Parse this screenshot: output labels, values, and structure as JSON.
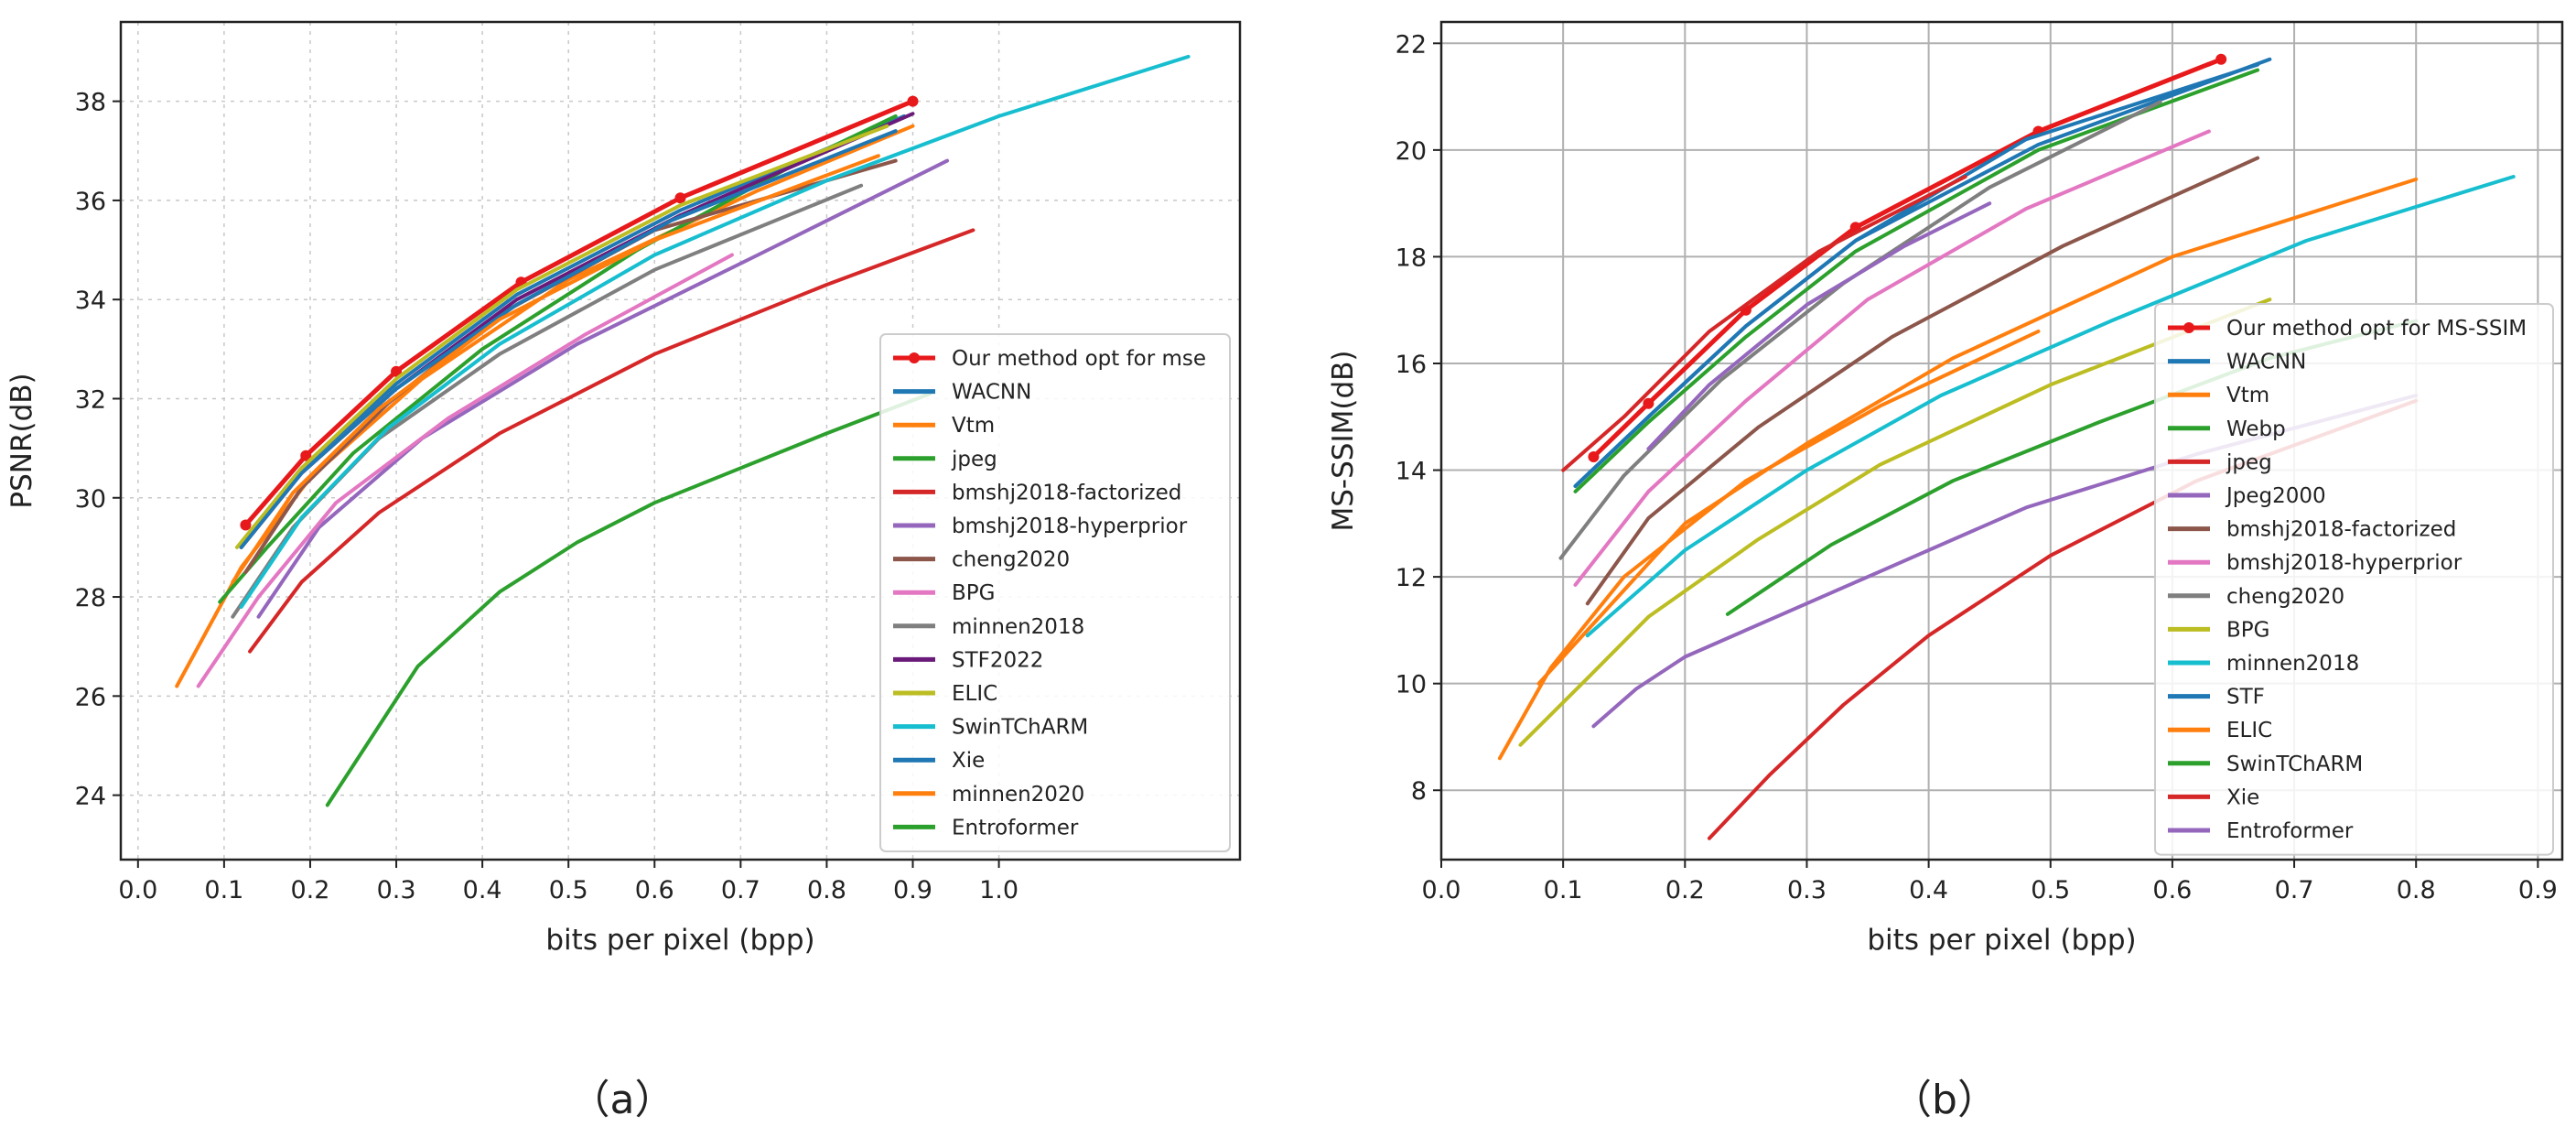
{
  "chart_data": [
    {
      "id": "a",
      "type": "line",
      "caption": "（a）",
      "xlabel": "bits per pixel (bpp)",
      "ylabel": "PSNR(dB)",
      "xlim": [
        -0.02,
        1.28
      ],
      "ylim": [
        22.7,
        39.6
      ],
      "xticks": [
        0.0,
        0.1,
        0.2,
        0.3,
        0.4,
        0.5,
        0.6,
        0.7,
        0.8,
        0.9,
        1.0
      ],
      "xtick_labels": [
        "0.0",
        "0.1",
        "0.2",
        "0.3",
        "0.4",
        "0.5",
        "0.6",
        "0.7",
        "0.8",
        "0.9",
        "1.0"
      ],
      "yticks": [
        24,
        26,
        28,
        30,
        32,
        34,
        36,
        38
      ],
      "ytick_labels": [
        "24",
        "26",
        "28",
        "30",
        "32",
        "34",
        "36",
        "38"
      ],
      "grid": true,
      "grid_style": "dotted",
      "legend_position": "lower-right",
      "series": [
        {
          "name": "Our method opt for mse",
          "color": "#e8191b",
          "markers": true,
          "x": [
            0.125,
            0.195,
            0.3,
            0.445,
            0.63,
            0.9
          ],
          "y": [
            29.45,
            30.85,
            32.55,
            34.35,
            36.05,
            38.0
          ]
        },
        {
          "name": "WACNN",
          "color": "#1f77b4",
          "x": [
            0.12,
            0.19,
            0.3,
            0.44,
            0.63,
            0.89
          ],
          "y": [
            29.1,
            30.6,
            32.3,
            34.1,
            35.8,
            37.7
          ]
        },
        {
          "name": "Vtm",
          "color": "#ff7f0e",
          "x": [
            0.045,
            0.12,
            0.2,
            0.33,
            0.5,
            0.72,
            0.9
          ],
          "y": [
            26.2,
            28.6,
            30.4,
            32.4,
            34.4,
            36.2,
            37.5
          ]
        },
        {
          "name": "jpeg",
          "color": "#2ca02c",
          "x": [
            0.095,
            0.15,
            0.25,
            0.4,
            0.58,
            0.76,
            0.88
          ],
          "y": [
            27.9,
            29.0,
            30.9,
            33.0,
            35.0,
            36.7,
            37.7
          ]
        },
        {
          "name": "bmshj2018-factorized",
          "color": "#d62728",
          "x": [
            0.13,
            0.19,
            0.28,
            0.42,
            0.6,
            0.8,
            0.97
          ],
          "y": [
            26.9,
            28.3,
            29.7,
            31.3,
            32.9,
            34.3,
            35.4
          ]
        },
        {
          "name": "bmshj2018-hyperprior",
          "color": "#9467bd",
          "x": [
            0.14,
            0.21,
            0.33,
            0.51,
            0.72,
            0.94
          ],
          "y": [
            27.6,
            29.4,
            31.2,
            33.1,
            34.9,
            36.8
          ]
        },
        {
          "name": "cheng2020",
          "color": "#8c564b",
          "x": [
            0.125,
            0.19,
            0.29,
            0.42,
            0.6,
            0.88
          ],
          "y": [
            28.5,
            30.2,
            31.9,
            33.7,
            35.4,
            36.8
          ]
        },
        {
          "name": "BPG",
          "color": "#e377c2",
          "x": [
            0.07,
            0.14,
            0.23,
            0.36,
            0.52,
            0.69
          ],
          "y": [
            26.2,
            28.0,
            29.9,
            31.6,
            33.3,
            34.9
          ]
        },
        {
          "name": "minnen2018",
          "color": "#7f7f7f",
          "x": [
            0.11,
            0.18,
            0.28,
            0.42,
            0.6,
            0.84
          ],
          "y": [
            27.6,
            29.4,
            31.2,
            32.9,
            34.6,
            36.3
          ]
        },
        {
          "name": "STF2022",
          "color": "#6a1b7a",
          "x": [
            0.12,
            0.19,
            0.3,
            0.44,
            0.63,
            0.9
          ],
          "y": [
            29.0,
            30.5,
            32.2,
            34.0,
            35.7,
            37.75
          ]
        },
        {
          "name": "ELIC",
          "color": "#bcbd22",
          "x": [
            0.115,
            0.19,
            0.3,
            0.44,
            0.63,
            0.87
          ],
          "y": [
            29.0,
            30.6,
            32.4,
            34.2,
            35.9,
            37.5
          ]
        },
        {
          "name": "SwinTChARM",
          "color": "#17becf",
          "x": [
            0.12,
            0.19,
            0.29,
            0.42,
            0.6,
            0.8,
            1.0,
            1.22
          ],
          "y": [
            27.8,
            29.6,
            31.4,
            33.1,
            34.9,
            36.4,
            37.7,
            38.9
          ]
        },
        {
          "name": "Xie",
          "color": "#1f77b4",
          "x": [
            0.12,
            0.19,
            0.3,
            0.44,
            0.62,
            0.88
          ],
          "y": [
            29.0,
            30.5,
            32.2,
            33.9,
            35.6,
            37.4
          ]
        },
        {
          "name": "minnen2020",
          "color": "#ff7f0e",
          "x": [
            0.11,
            0.18,
            0.28,
            0.42,
            0.6,
            0.86
          ],
          "y": [
            28.3,
            30.1,
            31.8,
            33.6,
            35.2,
            36.9
          ]
        },
        {
          "name": "Entroformer",
          "color": "#2ca02c",
          "x": [
            0.22,
            0.325,
            0.42,
            0.51,
            0.6,
            0.7,
            0.8,
            0.92
          ],
          "y": [
            23.8,
            26.6,
            28.1,
            29.1,
            29.9,
            30.6,
            31.3,
            32.1
          ]
        }
      ]
    },
    {
      "id": "b",
      "type": "line",
      "caption": "（b）",
      "xlabel": "bits per pixel (bpp)",
      "ylabel": "MS-SSIM(dB)",
      "xlim": [
        0.0,
        0.92
      ],
      "ylim": [
        6.7,
        22.4
      ],
      "xticks": [
        0.0,
        0.1,
        0.2,
        0.3,
        0.4,
        0.5,
        0.6,
        0.7,
        0.8,
        0.9
      ],
      "xtick_labels": [
        "0.0",
        "0.1",
        "0.2",
        "0.3",
        "0.4",
        "0.5",
        "0.6",
        "0.7",
        "0.8",
        "0.9"
      ],
      "yticks": [
        8,
        10,
        12,
        14,
        16,
        18,
        20,
        22
      ],
      "ytick_labels": [
        "8",
        "10",
        "12",
        "14",
        "16",
        "18",
        "20",
        "22"
      ],
      "grid": true,
      "grid_style": "solid",
      "legend_position": "center-right",
      "series": [
        {
          "name": "Our method opt for MS-SSIM",
          "color": "#e8191b",
          "markers": true,
          "x": [
            0.125,
            0.17,
            0.25,
            0.34,
            0.49,
            0.64
          ],
          "y": [
            14.25,
            15.25,
            17.0,
            18.55,
            20.35,
            21.7
          ]
        },
        {
          "name": "WACNN",
          "color": "#1f77b4",
          "x": [
            0.11,
            0.17,
            0.25,
            0.34,
            0.49,
            0.68
          ],
          "y": [
            13.7,
            15.0,
            16.7,
            18.3,
            20.1,
            21.7
          ]
        },
        {
          "name": "Vtm",
          "color": "#ff7f0e",
          "x": [
            0.08,
            0.12,
            0.2,
            0.3,
            0.42,
            0.6,
            0.8
          ],
          "y": [
            10.0,
            11.0,
            13.0,
            14.5,
            16.1,
            18.0,
            19.45
          ]
        },
        {
          "name": "Webp",
          "color": "#2ca02c",
          "x": [
            0.11,
            0.17,
            0.25,
            0.34,
            0.49,
            0.67
          ],
          "y": [
            13.6,
            14.9,
            16.5,
            18.1,
            20.0,
            21.5
          ]
        },
        {
          "name": "jpeg",
          "color": "#d62728",
          "x": [
            0.22,
            0.27,
            0.33,
            0.4,
            0.5,
            0.62,
            0.8
          ],
          "y": [
            7.1,
            8.3,
            9.6,
            10.9,
            12.4,
            13.8,
            15.3
          ]
        },
        {
          "name": "Jpeg2000",
          "color": "#9467bd",
          "x": [
            0.125,
            0.16,
            0.2,
            0.27,
            0.36,
            0.48,
            0.62,
            0.8
          ],
          "y": [
            9.2,
            9.9,
            10.5,
            11.2,
            12.1,
            13.3,
            14.3,
            15.4
          ]
        },
        {
          "name": "bmshj2018-factorized",
          "color": "#8c564b",
          "x": [
            0.12,
            0.17,
            0.26,
            0.37,
            0.51,
            0.67
          ],
          "y": [
            11.5,
            13.1,
            14.8,
            16.5,
            18.2,
            19.85
          ]
        },
        {
          "name": "bmshj2018-hyperprior",
          "color": "#e377c2",
          "x": [
            0.11,
            0.17,
            0.25,
            0.35,
            0.48,
            0.63
          ],
          "y": [
            11.85,
            13.6,
            15.3,
            17.2,
            18.9,
            20.35
          ]
        },
        {
          "name": "cheng2020",
          "color": "#7f7f7f",
          "x": [
            0.098,
            0.15,
            0.23,
            0.33,
            0.45,
            0.59
          ],
          "y": [
            12.35,
            13.9,
            15.7,
            17.5,
            19.3,
            20.9
          ]
        },
        {
          "name": "BPG",
          "color": "#bcbd22",
          "x": [
            0.065,
            0.12,
            0.17,
            0.26,
            0.36,
            0.5,
            0.68
          ],
          "y": [
            8.85,
            10.1,
            11.25,
            12.7,
            14.1,
            15.6,
            17.2
          ]
        },
        {
          "name": "minnen2018",
          "color": "#17becf",
          "x": [
            0.12,
            0.2,
            0.3,
            0.41,
            0.55,
            0.71,
            0.88
          ],
          "y": [
            10.9,
            12.5,
            14.0,
            15.4,
            16.8,
            18.3,
            19.5
          ]
        },
        {
          "name": "STF",
          "color": "#1f77b4",
          "x": [
            0.11,
            0.17,
            0.25,
            0.34,
            0.48,
            0.67
          ],
          "y": [
            13.7,
            15.0,
            16.7,
            18.3,
            20.2,
            21.6
          ]
        },
        {
          "name": "ELIC",
          "color": "#ff7f0e",
          "x": [
            0.048,
            0.09,
            0.15,
            0.25,
            0.36,
            0.49
          ],
          "y": [
            8.6,
            10.3,
            12.0,
            13.8,
            15.2,
            16.6
          ]
        },
        {
          "name": "SwinTChARM",
          "color": "#2ca02c",
          "x": [
            0.235,
            0.32,
            0.42,
            0.54,
            0.68,
            0.8
          ],
          "y": [
            11.3,
            12.6,
            13.8,
            14.9,
            16.1,
            16.8
          ]
        },
        {
          "name": "Xie",
          "color": "#d62728",
          "x": [
            0.1,
            0.15,
            0.22,
            0.31,
            0.43
          ],
          "y": [
            14.0,
            15.0,
            16.6,
            18.1,
            19.5
          ]
        },
        {
          "name": "Entroformer",
          "color": "#9467bd",
          "x": [
            0.17,
            0.22,
            0.3,
            0.38,
            0.45
          ],
          "y": [
            14.4,
            15.6,
            17.1,
            18.2,
            19.0
          ]
        }
      ]
    }
  ]
}
